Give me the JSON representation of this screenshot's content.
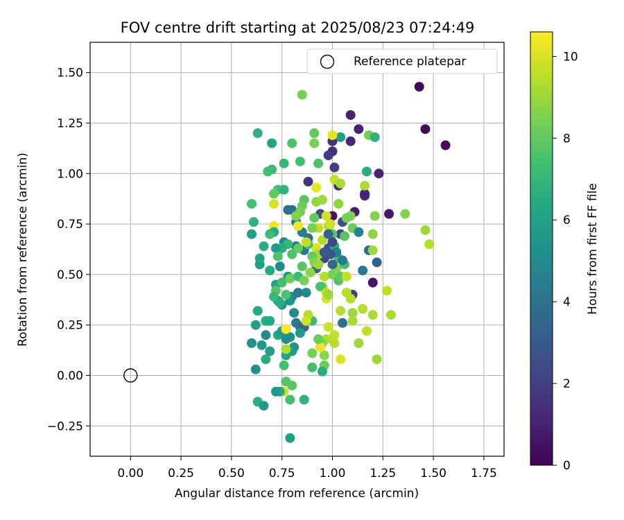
{
  "chart_data": {
    "type": "scatter",
    "title": "FOV centre drift starting at 2025/08/23 07:24:49",
    "xlabel": "Angular distance from reference (arcmin)",
    "ylabel": "Rotation from reference (arcmin)",
    "xlim": [
      -0.2,
      1.85
    ],
    "ylim": [
      -0.4,
      1.65
    ],
    "xticks": [
      0.0,
      0.25,
      0.5,
      0.75,
      1.0,
      1.25,
      1.5,
      1.75
    ],
    "xtick_labels": [
      "0.00",
      "0.25",
      "0.50",
      "0.75",
      "1.00",
      "1.25",
      "1.50",
      "1.75"
    ],
    "yticks": [
      -0.25,
      0.0,
      0.25,
      0.5,
      0.75,
      1.0,
      1.25,
      1.5
    ],
    "ytick_labels": [
      "−0.25",
      "0.00",
      "0.25",
      "0.50",
      "0.75",
      "1.00",
      "1.25",
      "1.50"
    ],
    "grid": true,
    "legend": {
      "label": "Reference platepar",
      "position": "top-right",
      "marker": "hollow-circle"
    },
    "reference_point": [
      0.0,
      0.0
    ],
    "colorbar": {
      "label": "Hours from first FF file",
      "range": [
        0,
        10.6
      ],
      "ticks": [
        0,
        2,
        4,
        6,
        8,
        10
      ],
      "tick_labels": [
        "0",
        "2",
        "4",
        "6",
        "8",
        "10"
      ],
      "colormap": "viridis"
    },
    "points": [
      [
        1.43,
        1.43,
        0.2
      ],
      [
        1.46,
        1.22,
        0.3
      ],
      [
        1.56,
        1.14,
        0.2
      ],
      [
        1.09,
        1.29,
        1.0
      ],
      [
        1.13,
        1.22,
        1.0
      ],
      [
        1.09,
        1.16,
        1.2
      ],
      [
        1.0,
        1.16,
        1.5
      ],
      [
        1.0,
        1.11,
        1.4
      ],
      [
        0.98,
        1.09,
        1.8
      ],
      [
        1.01,
        1.03,
        2.0
      ],
      [
        1.23,
        1.0,
        1.0
      ],
      [
        1.03,
        0.94,
        1.3
      ],
      [
        1.16,
        0.89,
        1.2
      ],
      [
        1.16,
        0.9,
        1.0
      ],
      [
        1.11,
        0.81,
        0.8
      ],
      [
        1.28,
        0.8,
        0.7
      ],
      [
        1.2,
        0.46,
        0.6
      ],
      [
        1.0,
        0.79,
        0.5
      ],
      [
        0.88,
        0.96,
        1.5
      ],
      [
        0.94,
        0.8,
        2.5
      ],
      [
        1.05,
        0.76,
        2.6
      ],
      [
        1.04,
        0.7,
        2.2
      ],
      [
        0.98,
        0.63,
        2.8
      ],
      [
        0.96,
        0.58,
        2.4
      ],
      [
        0.92,
        0.53,
        3.2
      ],
      [
        1.1,
        0.4,
        2.0
      ],
      [
        1.22,
        0.56,
        3.3
      ],
      [
        1.18,
        0.62,
        3.8
      ],
      [
        1.15,
        0.52,
        4.2
      ],
      [
        0.8,
        0.82,
        4.0
      ],
      [
        0.82,
        0.76,
        4.4
      ],
      [
        0.85,
        0.71,
        4.6
      ],
      [
        0.82,
        0.64,
        4.3
      ],
      [
        0.86,
        0.62,
        4.2
      ],
      [
        0.88,
        0.68,
        3.9
      ],
      [
        0.76,
        0.66,
        4.8
      ],
      [
        0.74,
        0.54,
        5.0
      ],
      [
        0.78,
        0.49,
        5.2
      ],
      [
        0.8,
        0.39,
        4.7
      ],
      [
        0.83,
        0.41,
        4.4
      ],
      [
        0.87,
        0.41,
        4.9
      ],
      [
        0.82,
        0.26,
        4.5
      ],
      [
        0.84,
        0.24,
        4.0
      ],
      [
        0.86,
        0.24,
        3.5
      ],
      [
        1.05,
        0.26,
        4.0
      ],
      [
        0.73,
        0.37,
        5.6
      ],
      [
        0.72,
        0.45,
        6.0
      ],
      [
        0.69,
        0.52,
        6.4
      ],
      [
        0.75,
        0.35,
        5.2
      ],
      [
        0.81,
        0.31,
        5.0
      ],
      [
        0.79,
        0.37,
        5.5
      ],
      [
        0.84,
        0.21,
        5.8
      ],
      [
        0.79,
        0.19,
        5.4
      ],
      [
        0.73,
        0.2,
        6.3
      ],
      [
        0.75,
        0.22,
        5.6
      ],
      [
        0.77,
        0.18,
        5.1
      ],
      [
        0.81,
        0.14,
        5.4
      ],
      [
        0.8,
        0.12,
        5.8
      ],
      [
        0.77,
        0.1,
        6.2
      ],
      [
        0.67,
        0.2,
        5.0
      ],
      [
        0.65,
        0.15,
        5.6
      ],
      [
        0.69,
        0.12,
        5.8
      ],
      [
        0.67,
        0.27,
        6.6
      ],
      [
        0.69,
        0.27,
        6.4
      ],
      [
        0.6,
        0.16,
        5.4
      ],
      [
        0.62,
        0.25,
        6.0
      ],
      [
        0.63,
        0.32,
        6.4
      ],
      [
        0.64,
        0.55,
        5.8
      ],
      [
        0.64,
        0.58,
        6.2
      ],
      [
        0.66,
        0.64,
        6.6
      ],
      [
        0.6,
        0.7,
        5.8
      ],
      [
        0.61,
        0.76,
        6.8
      ],
      [
        0.6,
        0.85,
        7.4
      ],
      [
        0.68,
        1.01,
        7.4
      ],
      [
        0.7,
        1.02,
        7.2
      ],
      [
        0.76,
        1.05,
        7.0
      ],
      [
        0.7,
        1.15,
        6.2
      ],
      [
        0.63,
        1.2,
        6.8
      ],
      [
        0.8,
        1.15,
        7.6
      ],
      [
        0.84,
        1.06,
        7.4
      ],
      [
        0.91,
        1.2,
        8.0
      ],
      [
        0.91,
        1.15,
        8.4
      ],
      [
        0.85,
        1.39,
        8.4
      ],
      [
        0.93,
        1.05,
        7.6
      ],
      [
        0.73,
        0.92,
        7.4
      ],
      [
        0.71,
        0.9,
        8.0
      ],
      [
        0.76,
        0.92,
        6.8
      ],
      [
        0.86,
        0.87,
        7.8
      ],
      [
        0.85,
        0.84,
        8.2
      ],
      [
        0.84,
        0.81,
        8.4
      ],
      [
        0.82,
        0.79,
        8.6
      ],
      [
        0.92,
        0.86,
        8.8
      ],
      [
        0.95,
        0.87,
        9.0
      ],
      [
        1.01,
        0.97,
        9.6
      ],
      [
        1.04,
        0.95,
        9.2
      ],
      [
        0.92,
        0.93,
        10.2
      ],
      [
        0.71,
        0.85,
        10.0
      ],
      [
        0.71,
        0.74,
        10.4
      ],
      [
        0.83,
        0.74,
        10.4
      ],
      [
        0.93,
        0.73,
        9.6
      ],
      [
        0.95,
        0.67,
        9.4
      ],
      [
        0.98,
        0.74,
        9.4
      ],
      [
        0.99,
        0.75,
        9.8
      ],
      [
        0.97,
        0.79,
        9.9
      ],
      [
        1.09,
        0.79,
        8.6
      ],
      [
        1.03,
        0.85,
        8.8
      ],
      [
        1.07,
        0.78,
        8.4
      ],
      [
        1.1,
        0.73,
        8.2
      ],
      [
        1.06,
        0.69,
        7.8
      ],
      [
        1.0,
        0.7,
        7.9
      ],
      [
        1.21,
        0.79,
        8.6
      ],
      [
        1.2,
        0.7,
        8.8
      ],
      [
        1.2,
        0.62,
        9.0
      ],
      [
        1.36,
        0.8,
        8.6
      ],
      [
        1.46,
        0.72,
        9.0
      ],
      [
        1.48,
        0.65,
        9.4
      ],
      [
        1.16,
        0.94,
        9.3
      ],
      [
        1.18,
        1.19,
        8.4
      ],
      [
        1.21,
        1.18,
        6.8
      ],
      [
        1.17,
        1.01,
        6.6
      ],
      [
        1.04,
        1.18,
        5.8
      ],
      [
        1.0,
        1.19,
        10.2
      ],
      [
        0.91,
        0.78,
        8.0
      ],
      [
        0.9,
        0.73,
        8.4
      ],
      [
        0.92,
        0.63,
        10.0
      ],
      [
        0.93,
        0.6,
        9.2
      ],
      [
        0.88,
        0.65,
        7.4
      ],
      [
        0.83,
        0.63,
        8.0
      ],
      [
        0.8,
        0.6,
        7.6
      ],
      [
        0.78,
        0.65,
        7.0
      ],
      [
        0.75,
        0.63,
        6.6
      ],
      [
        0.72,
        0.63,
        5.8
      ],
      [
        0.71,
        0.71,
        6.4
      ],
      [
        0.69,
        0.7,
        7.2
      ],
      [
        0.73,
        0.59,
        7.6
      ],
      [
        0.75,
        0.46,
        7.4
      ],
      [
        0.72,
        0.42,
        7.8
      ],
      [
        0.71,
        0.39,
        7.0
      ],
      [
        0.74,
        0.36,
        6.6
      ],
      [
        0.77,
        0.4,
        7.6
      ],
      [
        0.79,
        0.48,
        8.2
      ],
      [
        0.83,
        0.49,
        7.2
      ],
      [
        0.85,
        0.54,
        7.8
      ],
      [
        0.86,
        0.47,
        8.4
      ],
      [
        0.89,
        0.51,
        8.8
      ],
      [
        0.9,
        0.59,
        8.0
      ],
      [
        0.91,
        0.56,
        8.6
      ],
      [
        0.93,
        0.55,
        9.0
      ],
      [
        0.95,
        0.44,
        8.6
      ],
      [
        0.94,
        0.44,
        7.6
      ],
      [
        0.96,
        0.49,
        9.4
      ],
      [
        0.97,
        0.41,
        9.6
      ],
      [
        0.97,
        0.38,
        10.0
      ],
      [
        0.98,
        0.4,
        9.0
      ],
      [
        1.0,
        0.5,
        8.4
      ],
      [
        1.02,
        0.53,
        8.6
      ],
      [
        1.03,
        0.47,
        7.6
      ],
      [
        1.04,
        0.49,
        8.0
      ],
      [
        1.06,
        0.55,
        7.4
      ],
      [
        1.07,
        0.49,
        9.6
      ],
      [
        1.04,
        0.32,
        9.4
      ],
      [
        1.07,
        0.41,
        9.4
      ],
      [
        1.09,
        0.38,
        9.4
      ],
      [
        1.1,
        0.31,
        9.0
      ],
      [
        1.1,
        0.27,
        9.2
      ],
      [
        1.15,
        0.33,
        9.4
      ],
      [
        1.17,
        0.22,
        9.6
      ],
      [
        1.2,
        0.3,
        9.2
      ],
      [
        1.27,
        0.42,
        9.6
      ],
      [
        1.29,
        0.3,
        9.2
      ],
      [
        1.22,
        0.08,
        9.0
      ],
      [
        1.13,
        0.16,
        9.0
      ],
      [
        1.04,
        0.08,
        10.0
      ],
      [
        1.01,
        0.16,
        9.4
      ],
      [
        1.01,
        0.2,
        9.6
      ],
      [
        0.97,
        0.18,
        9.4
      ],
      [
        0.98,
        0.24,
        9.8
      ],
      [
        0.96,
        0.1,
        8.8
      ],
      [
        0.96,
        0.05,
        8.2
      ],
      [
        0.95,
        0.16,
        8.6
      ],
      [
        0.94,
        0.14,
        10.2
      ],
      [
        0.93,
        0.18,
        8.2
      ],
      [
        0.9,
        0.27,
        7.2
      ],
      [
        0.88,
        0.3,
        9.4
      ],
      [
        0.87,
        0.27,
        9.8
      ],
      [
        0.9,
        0.11,
        8.4
      ],
      [
        0.9,
        0.04,
        7.4
      ],
      [
        0.95,
        0.02,
        6.6
      ],
      [
        0.77,
        0.23,
        10.6
      ],
      [
        0.77,
        0.13,
        9.2
      ],
      [
        0.76,
        0.05,
        7.4
      ],
      [
        0.77,
        -0.03,
        7.8
      ],
      [
        0.8,
        -0.05,
        7.8
      ],
      [
        0.76,
        -0.08,
        9.8
      ],
      [
        0.74,
        -0.08,
        6.4
      ],
      [
        0.72,
        -0.08,
        5.6
      ],
      [
        0.79,
        -0.12,
        7.4
      ],
      [
        0.86,
        -0.12,
        6.8
      ],
      [
        0.63,
        -0.13,
        6.6
      ],
      [
        0.66,
        -0.15,
        5.6
      ],
      [
        0.62,
        0.03,
        5.2
      ],
      [
        0.67,
        0.08,
        6.6
      ],
      [
        0.79,
        -0.31,
        6.0
      ],
      [
        0.78,
        0.82,
        3.8
      ],
      [
        0.87,
        0.66,
        9.6
      ],
      [
        1.13,
        0.71,
        4.8
      ],
      [
        1.01,
        0.64,
        6.8
      ],
      [
        1.03,
        0.58,
        7.2
      ],
      [
        1.02,
        0.61,
        4.6
      ],
      [
        1.05,
        0.57,
        4.4
      ],
      [
        1.0,
        0.55,
        3.6
      ],
      [
        0.96,
        0.61,
        3.0
      ],
      [
        0.99,
        0.6,
        2.7
      ],
      [
        1.0,
        0.66,
        2.3
      ],
      [
        0.98,
        0.7,
        3.3
      ]
    ]
  }
}
